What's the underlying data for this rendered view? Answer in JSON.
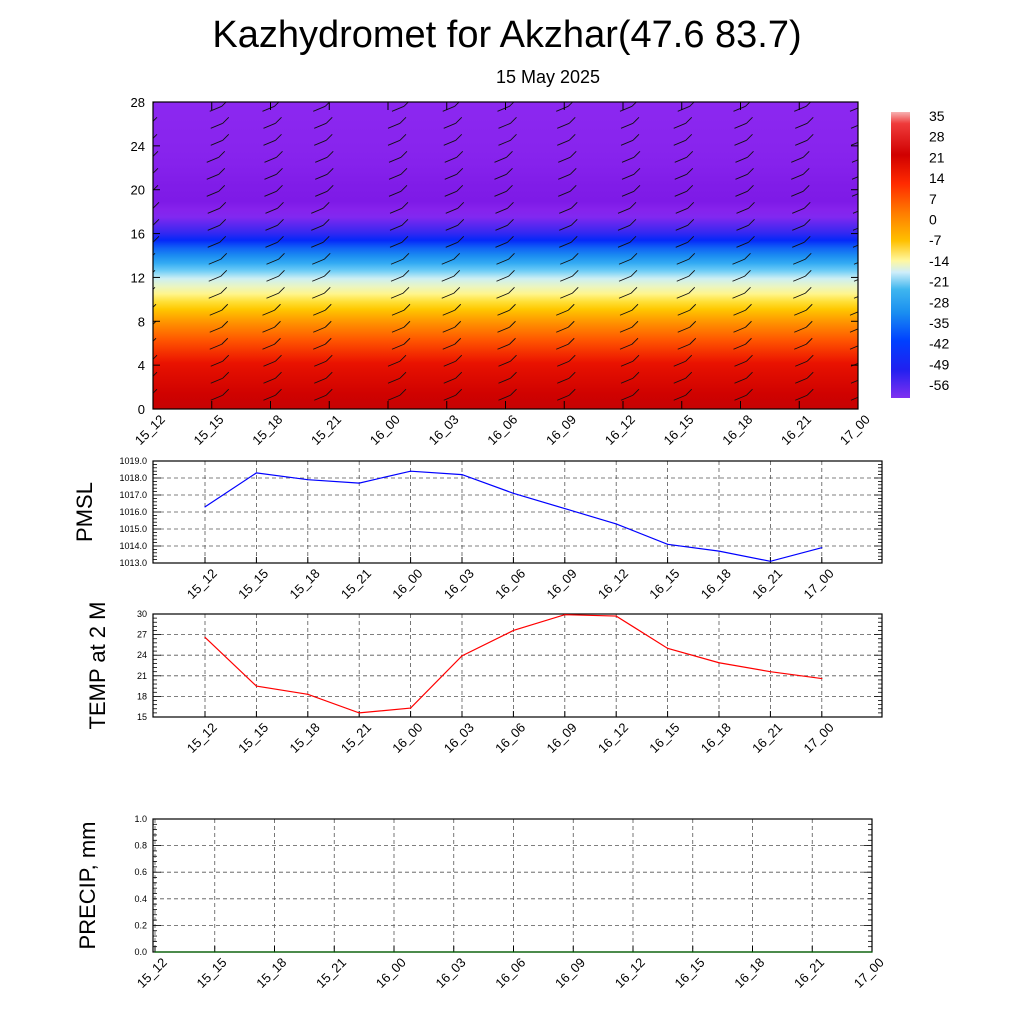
{
  "header": {
    "title": "Kazhydromet for Akzhar(47.6 83.7)",
    "subtitle": "15 May 2025"
  },
  "chart_data": [
    {
      "type": "heatmap",
      "name": "cross-section",
      "title": "",
      "x_labels": [
        "15_12",
        "15_15",
        "15_18",
        "15_21",
        "16_00",
        "16_03",
        "16_06",
        "16_09",
        "16_12",
        "16_15",
        "16_18",
        "16_21",
        "17_00"
      ],
      "y_ticks": [
        "0",
        "4",
        "8",
        "12",
        "16",
        "20",
        "24",
        "28"
      ],
      "ylim": [
        0,
        28
      ],
      "colorbar": {
        "labels": [
          "35",
          "28",
          "21",
          "14",
          "7",
          "0",
          "-7",
          "-14",
          "-21",
          "-28",
          "-35",
          "-42",
          "-49",
          "-56"
        ]
      },
      "level_profile": [
        {
          "level": 0,
          "value": 30
        },
        {
          "level": 4,
          "value": 22
        },
        {
          "level": 8,
          "value": 7
        },
        {
          "level": 12,
          "value": -14
        },
        {
          "level": 14,
          "value": -30
        },
        {
          "level": 16,
          "value": -48
        },
        {
          "level": 19,
          "value": -62
        },
        {
          "level": 23,
          "value": -58
        },
        {
          "level": 28,
          "value": -56
        }
      ]
    },
    {
      "type": "line",
      "name": "pmsl",
      "ylabel": "PMSL",
      "x": [
        "15_12",
        "15_15",
        "15_18",
        "15_21",
        "16_00",
        "16_03",
        "16_06",
        "16_09",
        "16_12",
        "16_15",
        "16_18",
        "16_21",
        "17_00"
      ],
      "values": [
        1016.3,
        1018.3,
        1017.9,
        1017.7,
        1018.4,
        1018.2,
        1017.1,
        1016.2,
        1015.3,
        1014.1,
        1013.7,
        1013.1,
        1013.9
      ],
      "ylim": [
        1013.0,
        1019.0
      ],
      "y_ticks": [
        "1013.0",
        "1014.0",
        "1015.0",
        "1016.0",
        "1017.0",
        "1018.0",
        "1019.0"
      ],
      "color": "#0000ff",
      "grid": true
    },
    {
      "type": "line",
      "name": "temp",
      "ylabel": "TEMP at 2 M",
      "x": [
        "15_12",
        "15_15",
        "15_18",
        "15_21",
        "16_00",
        "16_03",
        "16_06",
        "16_09",
        "16_12",
        "16_15",
        "16_18",
        "16_21",
        "17_00"
      ],
      "values": [
        26.6,
        19.5,
        18.3,
        15.6,
        16.3,
        23.9,
        27.6,
        29.9,
        29.7,
        25.0,
        22.9,
        21.6,
        20.6
      ],
      "ylim": [
        15,
        30
      ],
      "y_ticks": [
        "15",
        "18",
        "21",
        "24",
        "27",
        "30"
      ],
      "color": "#ff0000",
      "grid": true
    },
    {
      "type": "line",
      "name": "precip",
      "ylabel": "PRECIP, mm",
      "x": [
        "15_12",
        "15_15",
        "15_18",
        "15_21",
        "16_00",
        "16_03",
        "16_06",
        "16_09",
        "16_12",
        "16_15",
        "16_18",
        "16_21",
        "17_00"
      ],
      "values": [
        0,
        0,
        0,
        0,
        0,
        0,
        0,
        0,
        0,
        0,
        0,
        0,
        0
      ],
      "ylim": [
        0,
        1.0
      ],
      "y_ticks": [
        "0.0",
        "0.2",
        "0.4",
        "0.6",
        "0.8",
        "1.0"
      ],
      "color": "#006400",
      "grid": true
    }
  ]
}
